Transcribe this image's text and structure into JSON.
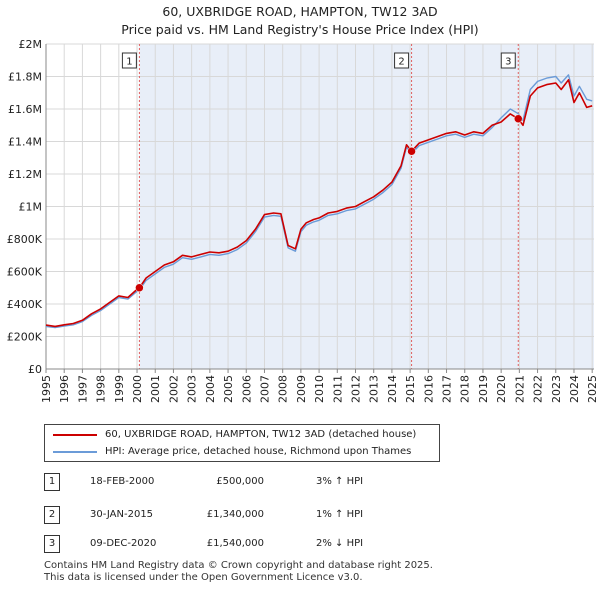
{
  "title": {
    "line1": "60, UXBRIDGE ROAD, HAMPTON, TW12 3AD",
    "line2": "Price paid vs. HM Land Registry's House Price Index (HPI)"
  },
  "colors": {
    "property": "#cc0000",
    "hpi": "#6b9bd8",
    "shade": "#e8eef8",
    "marker_line": "#e06060",
    "grid": "#d8d8d8"
  },
  "chart_data": {
    "type": "line",
    "title": "Price paid vs. HM Land Registry's House Price Index (HPI)",
    "xlim": [
      1995,
      2025.1
    ],
    "ylim": [
      0,
      2000000
    ],
    "y_ticks": [
      0,
      200000,
      400000,
      600000,
      800000,
      1000000,
      1200000,
      1400000,
      1600000,
      1800000,
      2000000
    ],
    "y_tick_labels": [
      "£0",
      "£200K",
      "£400K",
      "£600K",
      "£800K",
      "£1M",
      "£1.2M",
      "£1.4M",
      "£1.6M",
      "£1.8M",
      "£2M"
    ],
    "x_ticks": [
      1995,
      1996,
      1997,
      1998,
      1999,
      2000,
      2001,
      2002,
      2003,
      2004,
      2005,
      2006,
      2007,
      2008,
      2009,
      2010,
      2011,
      2012,
      2013,
      2014,
      2015,
      2016,
      2017,
      2018,
      2019,
      2020,
      2021,
      2022,
      2023,
      2024,
      2025
    ],
    "x_tick_labels": [
      "1995",
      "1996",
      "1997",
      "1998",
      "1999",
      "2000",
      "2001",
      "2002",
      "2003",
      "2004",
      "2005",
      "2006",
      "2007",
      "2008",
      "2009",
      "2010",
      "2011",
      "2012",
      "2013",
      "2014",
      "2015",
      "2016",
      "2017",
      "2018",
      "2019",
      "2020",
      "2021",
      "2022",
      "2023",
      "2024",
      "2025"
    ],
    "series": [
      {
        "name": "60, UXBRIDGE ROAD, HAMPTON, TW12 3AD (detached house)",
        "color": "#cc0000",
        "x": [
          1995.0,
          1995.5,
          1996.0,
          1996.5,
          1997.0,
          1997.5,
          1998.0,
          1998.5,
          1999.0,
          1999.5,
          2000.0,
          2000.13,
          2000.5,
          2001.0,
          2001.5,
          2002.0,
          2002.5,
          2003.0,
          2003.5,
          2004.0,
          2004.5,
          2005.0,
          2005.5,
          2006.0,
          2006.5,
          2007.0,
          2007.5,
          2007.9,
          2008.3,
          2008.7,
          2009.0,
          2009.3,
          2009.7,
          2010.0,
          2010.5,
          2011.0,
          2011.5,
          2012.0,
          2012.5,
          2013.0,
          2013.5,
          2014.0,
          2014.5,
          2014.8,
          2015.08,
          2015.5,
          2016.0,
          2016.5,
          2017.0,
          2017.5,
          2018.0,
          2018.5,
          2019.0,
          2019.5,
          2020.0,
          2020.5,
          2020.94,
          2021.2,
          2021.6,
          2022.0,
          2022.5,
          2023.0,
          2023.3,
          2023.7,
          2024.0,
          2024.3,
          2024.7,
          2025.0
        ],
        "y": [
          270000,
          262000,
          272000,
          280000,
          300000,
          340000,
          370000,
          410000,
          450000,
          440000,
          490000,
          500000,
          560000,
          600000,
          640000,
          660000,
          700000,
          690000,
          705000,
          720000,
          715000,
          725000,
          750000,
          790000,
          860000,
          950000,
          960000,
          955000,
          760000,
          740000,
          860000,
          900000,
          920000,
          930000,
          960000,
          970000,
          990000,
          1000000,
          1030000,
          1060000,
          1100000,
          1150000,
          1250000,
          1380000,
          1340000,
          1390000,
          1410000,
          1430000,
          1450000,
          1460000,
          1440000,
          1460000,
          1450000,
          1500000,
          1520000,
          1570000,
          1540000,
          1500000,
          1680000,
          1730000,
          1750000,
          1760000,
          1720000,
          1780000,
          1640000,
          1700000,
          1610000,
          1620000
        ]
      },
      {
        "name": "HPI: Average price, detached house, Richmond upon Thames",
        "color": "#6b9bd8",
        "x": [
          1995.0,
          1995.5,
          1996.0,
          1996.5,
          1997.0,
          1997.5,
          1998.0,
          1998.5,
          1999.0,
          1999.5,
          2000.0,
          2000.13,
          2000.5,
          2001.0,
          2001.5,
          2002.0,
          2002.5,
          2003.0,
          2003.5,
          2004.0,
          2004.5,
          2005.0,
          2005.5,
          2006.0,
          2006.5,
          2007.0,
          2007.5,
          2007.9,
          2008.3,
          2008.7,
          2009.0,
          2009.3,
          2009.7,
          2010.0,
          2010.5,
          2011.0,
          2011.5,
          2012.0,
          2012.5,
          2013.0,
          2013.5,
          2014.0,
          2014.5,
          2014.8,
          2015.08,
          2015.5,
          2016.0,
          2016.5,
          2017.0,
          2017.5,
          2018.0,
          2018.5,
          2019.0,
          2019.5,
          2020.0,
          2020.5,
          2020.94,
          2021.2,
          2021.6,
          2022.0,
          2022.5,
          2023.0,
          2023.3,
          2023.7,
          2024.0,
          2024.3,
          2024.7,
          2025.0
        ],
        "y": [
          262000,
          255000,
          264000,
          272000,
          292000,
          330000,
          360000,
          400000,
          440000,
          430000,
          478000,
          487000,
          545000,
          585000,
          625000,
          645000,
          685000,
          675000,
          690000,
          705000,
          700000,
          710000,
          735000,
          775000,
          845000,
          935000,
          945000,
          940000,
          745000,
          725000,
          845000,
          885000,
          905000,
          915000,
          945000,
          955000,
          975000,
          985000,
          1015000,
          1045000,
          1085000,
          1135000,
          1235000,
          1365000,
          1327000,
          1375000,
          1395000,
          1415000,
          1435000,
          1445000,
          1425000,
          1445000,
          1435000,
          1485000,
          1545000,
          1600000,
          1571000,
          1530000,
          1720000,
          1770000,
          1790000,
          1800000,
          1760000,
          1810000,
          1680000,
          1740000,
          1660000,
          1650000
        ]
      }
    ],
    "sales": [
      {
        "id": "1",
        "x": 2000.13,
        "price": 500000,
        "date": "18-FEB-2000",
        "price_label": "£500,000",
        "hpi_label": "3% ↑ HPI"
      },
      {
        "id": "2",
        "x": 2015.08,
        "price": 1340000,
        "date": "30-JAN-2015",
        "price_label": "£1,340,000",
        "hpi_label": "1% ↑ HPI"
      },
      {
        "id": "3",
        "x": 2020.94,
        "price": 1540000,
        "date": "09-DEC-2020",
        "price_label": "£1,540,000",
        "hpi_label": "2% ↓ HPI"
      }
    ]
  },
  "legend": {
    "property_label": "60, UXBRIDGE ROAD, HAMPTON, TW12 3AD (detached house)",
    "hpi_label": "HPI: Average price, detached house, Richmond upon Thames"
  },
  "sales_table": [
    {
      "id": "1",
      "date": "18-FEB-2000",
      "price": "£500,000",
      "hpi": "3% ↑ HPI"
    },
    {
      "id": "2",
      "date": "30-JAN-2015",
      "price": "£1,340,000",
      "hpi": "1% ↑ HPI"
    },
    {
      "id": "3",
      "date": "09-DEC-2020",
      "price": "£1,540,000",
      "hpi": "2% ↓ HPI"
    }
  ],
  "footer": {
    "line1": "Contains HM Land Registry data © Crown copyright and database right 2025.",
    "line2": "This data is licensed under the Open Government Licence v3.0."
  }
}
